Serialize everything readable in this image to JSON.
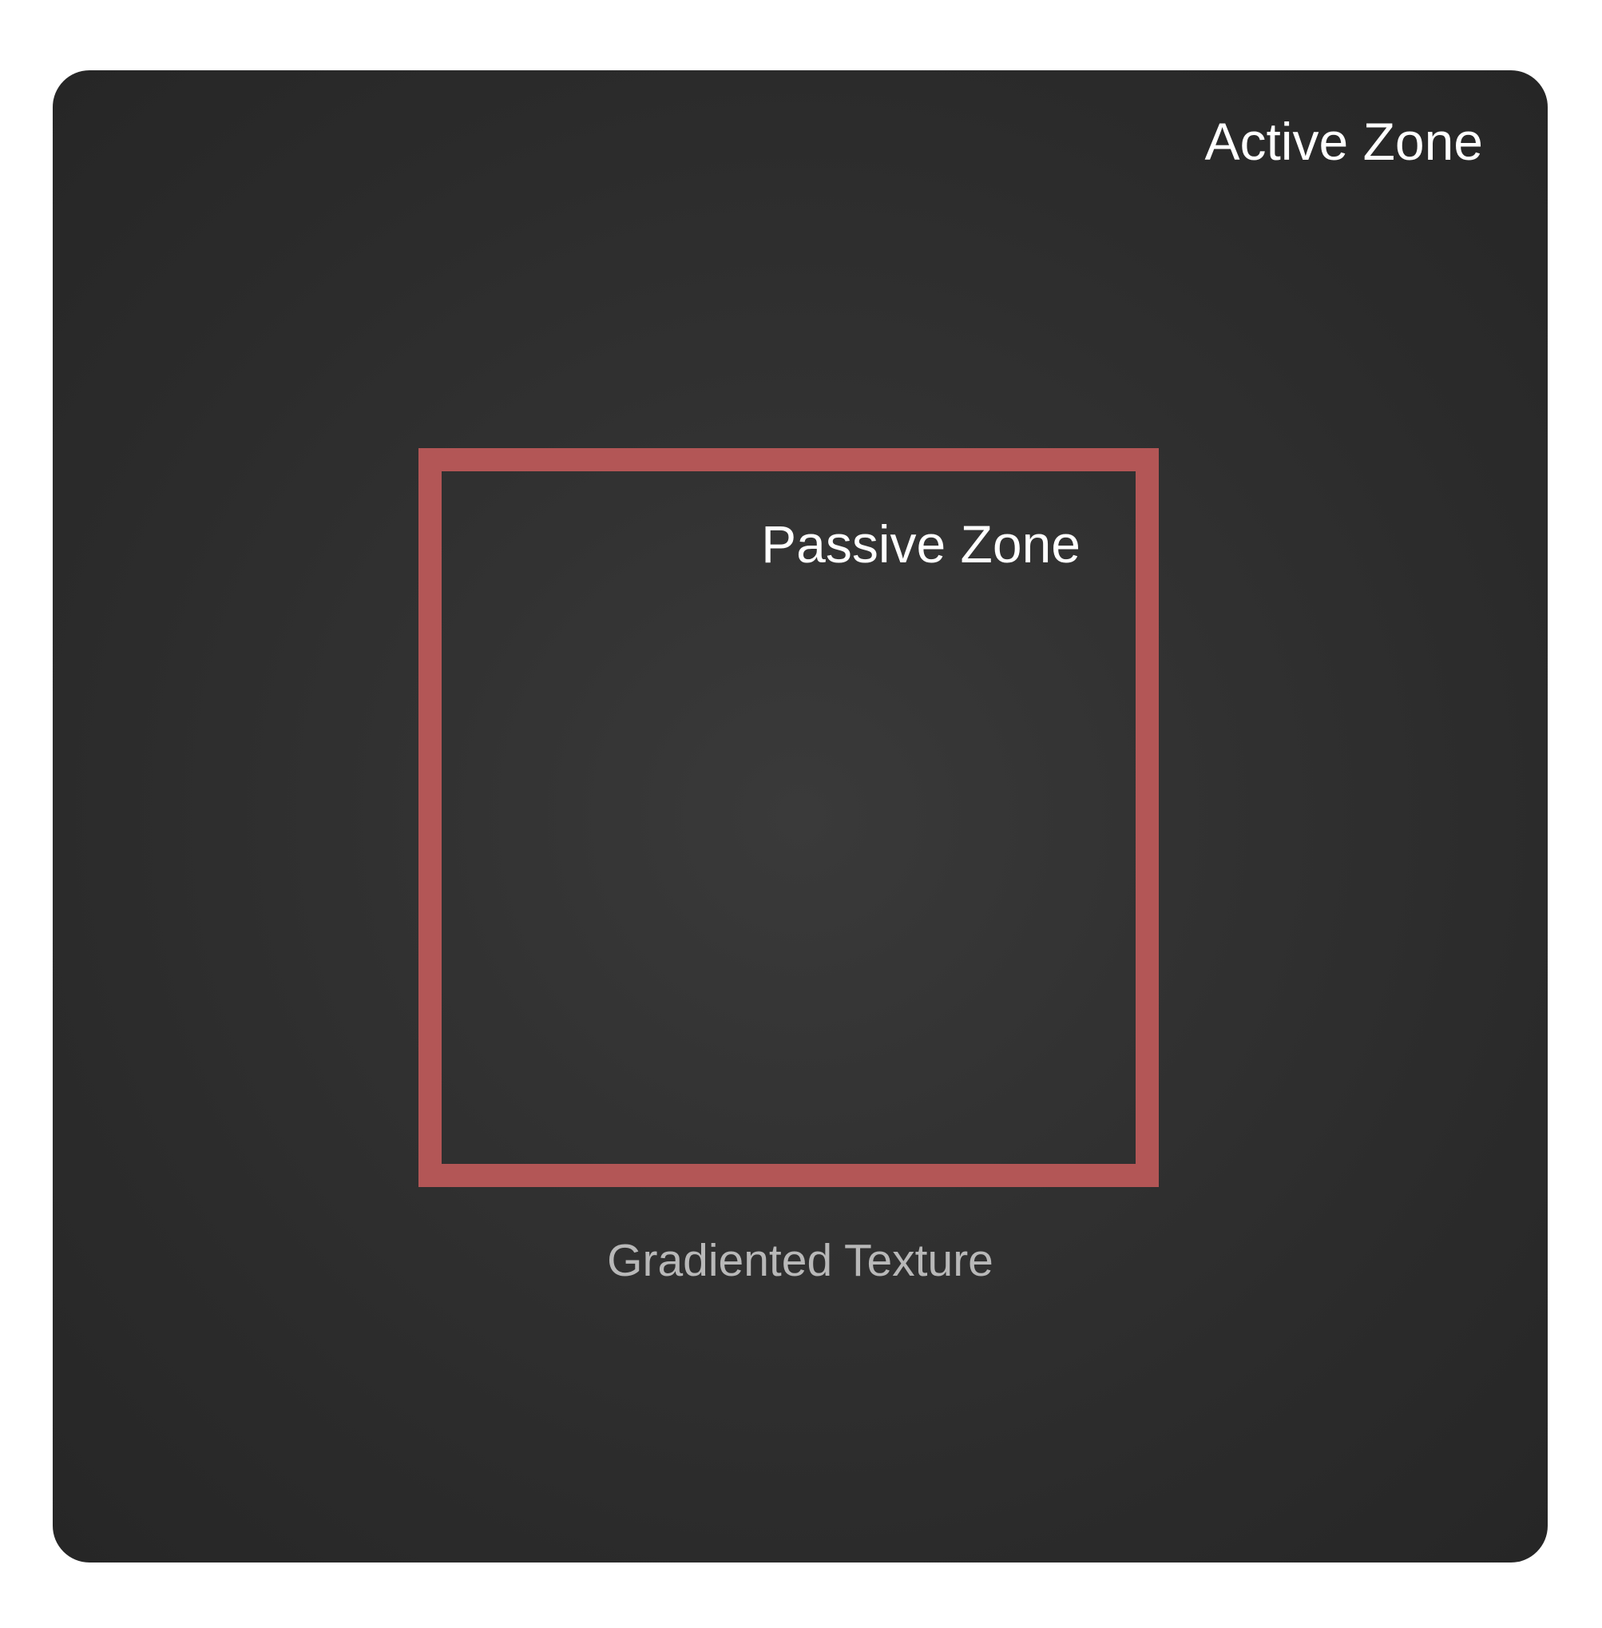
{
  "diagram": {
    "active_zone_label": "Active Zone",
    "passive_zone_label": "Passive Zone",
    "texture_label": "Gradiented Texture"
  },
  "colors": {
    "panel_background": "#2e2e2e",
    "passive_zone_border": "#b35656",
    "primary_text": "#ffffff",
    "secondary_text": "#b8b8b8"
  }
}
